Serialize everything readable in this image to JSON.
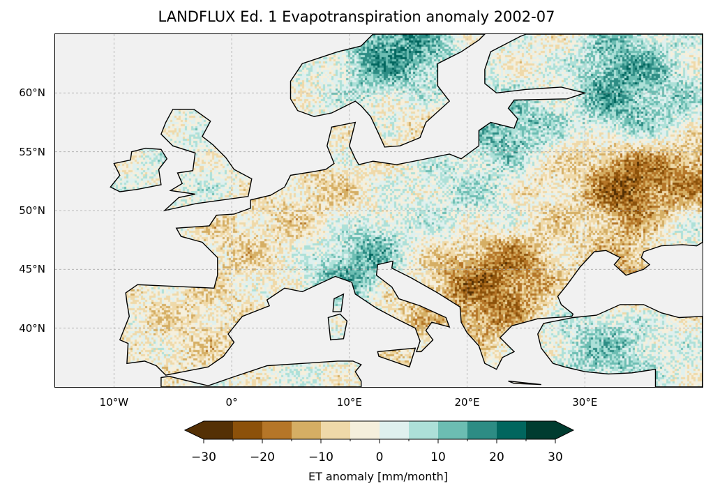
{
  "title": "LANDFLUX Ed. 1 Evapotranspiration anomaly 2002-07",
  "map": {
    "lon_range": [
      -15,
      40
    ],
    "lat_range": [
      35,
      65
    ],
    "ocean_color": "#f1f1f1",
    "lon_ticks": [
      {
        "value": -10,
        "label": "10°W"
      },
      {
        "value": 0,
        "label": "0°"
      },
      {
        "value": 10,
        "label": "10°E"
      },
      {
        "value": 20,
        "label": "20°E"
      },
      {
        "value": 30,
        "label": "30°E"
      }
    ],
    "lat_ticks": [
      {
        "value": 40,
        "label": "40°N"
      },
      {
        "value": 45,
        "label": "45°N"
      },
      {
        "value": 50,
        "label": "50°N"
      },
      {
        "value": 55,
        "label": "55°N"
      },
      {
        "value": 60,
        "label": "60°N"
      }
    ]
  },
  "colorbar": {
    "label": "ET anomaly [mm/month]",
    "range": [
      -30,
      30
    ],
    "extend": "both",
    "bounds": [
      -30,
      -25,
      -20,
      -15,
      -10,
      -5,
      0,
      5,
      10,
      15,
      20,
      25,
      30
    ],
    "colors": [
      "#543005",
      "#8c510a",
      "#b57628",
      "#d5ae64",
      "#efd9a9",
      "#f5efdc",
      "#dff0ee",
      "#ade0d8",
      "#6cbdb2",
      "#2d8c84",
      "#01665e",
      "#003c30"
    ],
    "under_color": "#543005",
    "over_color": "#003c30",
    "tick_labels": [
      {
        "value": -30,
        "label": "−30"
      },
      {
        "value": -20,
        "label": "−20"
      },
      {
        "value": -10,
        "label": "−10"
      },
      {
        "value": 0,
        "label": "0"
      },
      {
        "value": 10,
        "label": "10"
      },
      {
        "value": 20,
        "label": "20"
      },
      {
        "value": 30,
        "label": "30"
      }
    ]
  }
}
